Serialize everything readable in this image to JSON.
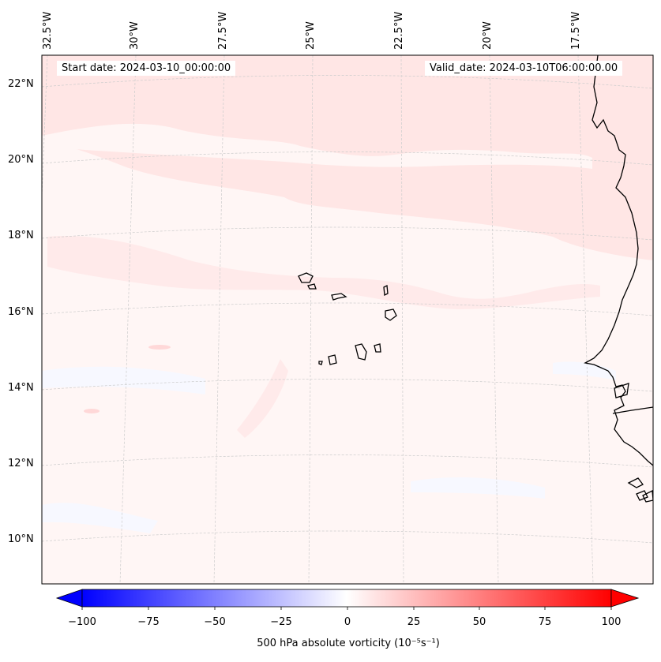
{
  "header": {
    "start_date": "Start date: 2024-03-10_00:00:00",
    "valid_date": "Valid_date: 2024-03-10T06:00:00.00"
  },
  "map": {
    "projection": "Lambert conformal",
    "grid": true,
    "lon_labels": [
      "32.5°W",
      "30°W",
      "27.5°W",
      "25°W",
      "22.5°W",
      "20°W",
      "17.5°W"
    ],
    "lat_labels": [
      "22°N",
      "20°N",
      "18°N",
      "16°N",
      "14°N",
      "12°N",
      "10°N"
    ],
    "field": "500 hPa absolute vorticity",
    "field_character": "mostly weak positive vorticity (0–10) over the domain, weak negative patches in the south"
  },
  "colorbar": {
    "label": "500 hPa absolute vorticity (10⁻⁵s⁻¹)",
    "ticks": [
      "−100",
      "−75",
      "−50",
      "−25",
      "0",
      "25",
      "50",
      "75",
      "100"
    ],
    "range": [
      -100,
      100
    ],
    "colors": {
      "min": "#0000ff",
      "mid": "#ffffff",
      "max": "#ff0000"
    },
    "extend": "both"
  }
}
